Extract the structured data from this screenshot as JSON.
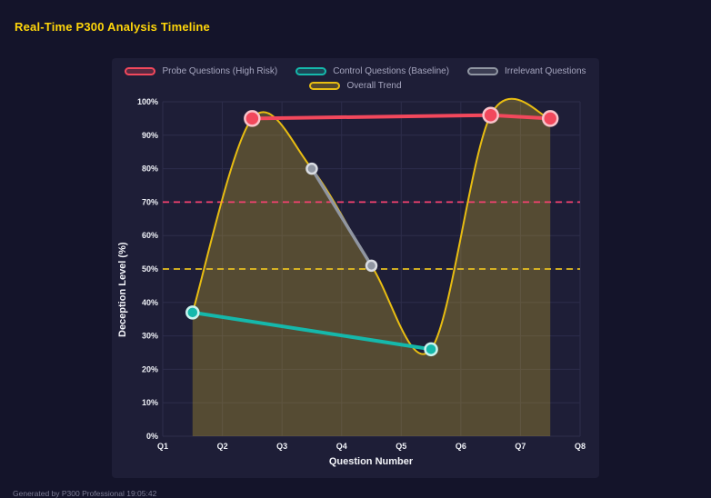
{
  "page": {
    "title": "Real-Time P300 Analysis Timeline",
    "footer": "Generated by P300 Professional  19:05:42"
  },
  "chart_data": {
    "type": "line",
    "title": "Real-Time P300 Analysis Timeline",
    "xlabel": "Question Number",
    "ylabel": "Deception Level (%)",
    "x_ticks": [
      "Q1",
      "Q2",
      "Q3",
      "Q4",
      "Q5",
      "Q6",
      "Q7",
      "Q8"
    ],
    "x_range": [
      1,
      8
    ],
    "y_ticks": [
      "0%",
      "10%",
      "20%",
      "30%",
      "40%",
      "50%",
      "60%",
      "70%",
      "80%",
      "90%",
      "100%"
    ],
    "y_tick_values": [
      0,
      10,
      20,
      30,
      40,
      50,
      60,
      70,
      80,
      90,
      100
    ],
    "y_range": [
      0,
      100
    ],
    "grid": true,
    "legend_position": "top",
    "legend_rows": [
      [
        0,
        1,
        2
      ],
      [
        3
      ]
    ],
    "series": [
      {
        "name": "Probe Questions (High Risk)",
        "color": "#f2485c",
        "ring": "#f9c3ca",
        "line_width": 4,
        "point_radius": 8,
        "smooth": false,
        "points": [
          [
            2.5,
            95
          ],
          [
            6.5,
            96
          ],
          [
            7.5,
            95
          ]
        ]
      },
      {
        "name": "Control Questions (Baseline)",
        "color": "#15b8ab",
        "ring": "#c9f3ee",
        "line_width": 4,
        "point_radius": 6.5,
        "smooth": false,
        "points": [
          [
            1.5,
            37
          ],
          [
            5.5,
            26
          ]
        ]
      },
      {
        "name": "Irrelevant Questions",
        "color": "#9096a2",
        "ring": "#dadde3",
        "line_width": 3.5,
        "point_radius": 5.5,
        "smooth": false,
        "points": [
          [
            3.5,
            80
          ],
          [
            4.5,
            51
          ]
        ]
      },
      {
        "name": "Overall Trend",
        "color": "#e8bd12",
        "ring": "#e8bd12",
        "line_width": 2,
        "point_radius": 0,
        "smooth": true,
        "area_fill": "rgba(222,186,40,0.29)",
        "points": [
          [
            1.5,
            37
          ],
          [
            2.5,
            95
          ],
          [
            3.5,
            80
          ],
          [
            4.5,
            51
          ],
          [
            5.5,
            26
          ],
          [
            6.5,
            96
          ],
          [
            7.5,
            95
          ]
        ]
      }
    ],
    "thresholds": [
      {
        "value": 70,
        "color": "#f54270",
        "dash": "7,5"
      },
      {
        "value": 50,
        "color": "#e8c020",
        "dash": "7,5"
      }
    ]
  }
}
